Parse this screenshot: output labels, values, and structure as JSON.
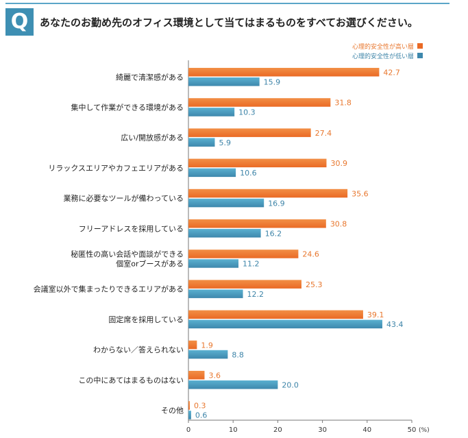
{
  "header": {
    "badge": "Q",
    "question": "あなたのお勤め先のオフィス環境として当てはまるものをすべてお選びください。"
  },
  "colors": {
    "accent": "#3e8fb3",
    "high": "#ea6a25",
    "low": "#3e88ad",
    "high_text": "#e8772e",
    "low_text": "#3d84a8"
  },
  "chart_data": {
    "type": "bar",
    "orientation": "horizontal",
    "title": "",
    "xlabel": "",
    "xunit": "(%)",
    "xlim": [
      0,
      50
    ],
    "xticks": [
      0,
      10,
      20,
      30,
      40,
      50
    ],
    "grid": false,
    "legend_position": "top-right",
    "categories": [
      [
        "綺麗で清潔感がある"
      ],
      [
        "集中して作業ができる環境がある"
      ],
      [
        "広い/開放感がある"
      ],
      [
        "リラックスエリアやカフェエリアがある"
      ],
      [
        "業務に必要なツールが備わっている"
      ],
      [
        "フリーアドレスを採用している"
      ],
      [
        "秘匿性の高い会話や面談ができる",
        "個室orブースがある"
      ],
      [
        "会議室以外で集まったりできるエリアがある"
      ],
      [
        "固定席を採用している"
      ],
      [
        "わからない／答えられない"
      ],
      [
        "この中にあてはまるものはない"
      ],
      [
        "その他"
      ]
    ],
    "series": [
      {
        "name": "心理的安全性が高い層",
        "values": [
          42.7,
          31.8,
          27.4,
          30.9,
          35.6,
          30.8,
          24.6,
          25.3,
          39.1,
          1.9,
          3.6,
          0.3
        ]
      },
      {
        "name": "心理的安全性が低い層",
        "values": [
          15.9,
          10.3,
          5.9,
          10.6,
          16.9,
          16.2,
          11.2,
          12.2,
          43.4,
          8.8,
          20.0,
          0.6
        ]
      }
    ]
  }
}
